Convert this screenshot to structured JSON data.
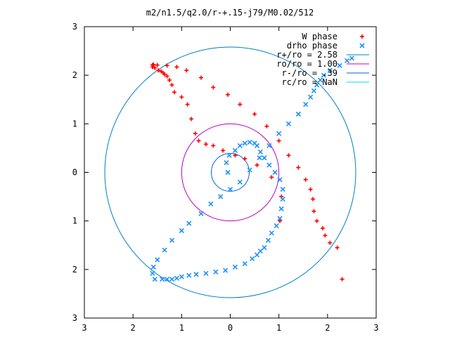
{
  "chart_data": {
    "type": "scatter",
    "title": "m2/n1.5/q2.0/r-+.15-j79/M0.02/512",
    "xlabel": "",
    "ylabel": "",
    "xlim": [
      -3,
      3
    ],
    "ylim": [
      -3,
      3
    ],
    "x_tick_labels": [
      "3",
      "2",
      "1",
      "0",
      "1",
      "2",
      "3"
    ],
    "y_tick_labels": [
      "3",
      "2",
      "1",
      "0",
      "1",
      "2",
      "3"
    ],
    "grid": false,
    "legend_position": "top-right",
    "series": [
      {
        "name": "W phase",
        "kind": "points",
        "marker": "+",
        "color": "#ff0000",
        "x": [
          1.02,
          1.05,
          0.85,
          0.55,
          0.3,
          0.1,
          -0.15,
          -0.35,
          -0.5,
          -0.65,
          -0.72,
          -0.8,
          -0.88,
          -1.0,
          -1.15,
          -1.2,
          -1.25,
          -1.3,
          -1.35,
          -1.38,
          -1.42,
          -1.48,
          -1.55,
          -1.6,
          -1.6,
          -1.58,
          -1.5,
          -1.3,
          -1.1,
          -0.9,
          -0.6,
          -0.35,
          -0.05,
          0.2,
          0.5,
          0.75,
          1.0,
          1.2,
          1.4,
          1.55,
          1.65,
          1.7,
          1.72,
          1.78,
          1.9,
          1.95,
          2.05,
          2.2,
          2.3
        ],
        "y": [
          -1.0,
          -0.5,
          -0.1,
          0.15,
          0.28,
          0.35,
          0.45,
          0.55,
          0.58,
          0.65,
          0.8,
          1.1,
          1.4,
          1.55,
          1.65,
          1.8,
          1.9,
          1.98,
          2.02,
          2.05,
          2.08,
          2.1,
          2.15,
          2.17,
          2.21,
          2.22,
          2.21,
          2.2,
          2.17,
          2.1,
          1.95,
          1.75,
          1.6,
          1.4,
          1.2,
          0.95,
          0.65,
          0.35,
          0.1,
          -0.15,
          -0.35,
          -0.55,
          -0.8,
          -1.0,
          -1.15,
          -1.3,
          -1.45,
          -1.55,
          -2.2
        ]
      },
      {
        "name": "drho phase",
        "kind": "points",
        "marker": "x",
        "color": "#1e90ff",
        "x": [
          -0.05,
          -0.08,
          -0.02,
          0.1,
          0.2,
          0.3,
          0.4,
          0.5,
          0.55,
          0.62,
          0.7,
          0.8,
          0.92,
          1.02,
          1.08,
          1.08,
          1.05,
          1.02,
          0.95,
          0.85,
          0.78,
          0.7,
          0.62,
          0.55,
          0.45,
          0.3,
          0.1,
          -0.1,
          -0.3,
          -0.5,
          -0.7,
          -0.85,
          -1.0,
          -1.1,
          -1.2,
          -1.3,
          -1.4,
          -1.55,
          -1.6,
          -1.58,
          -1.5,
          -1.35,
          -1.2,
          -1.0,
          -0.85,
          -0.6,
          -0.4,
          -0.2,
          0.0,
          0.2,
          0.4,
          0.6,
          0.8,
          1.0,
          1.2,
          1.4,
          1.55,
          1.65,
          1.72,
          1.78,
          1.85,
          1.92,
          2.05,
          2.25,
          2.4,
          2.5
        ],
        "y": [
          0.0,
          0.2,
          0.35,
          0.45,
          0.55,
          0.6,
          0.62,
          0.6,
          0.55,
          0.42,
          0.3,
          0.15,
          0.0,
          -0.15,
          -0.35,
          -0.55,
          -0.75,
          -0.95,
          -1.1,
          -1.25,
          -1.4,
          -1.55,
          -1.62,
          -1.7,
          -1.78,
          -1.88,
          -1.95,
          -2.02,
          -2.05,
          -2.08,
          -2.1,
          -2.12,
          -2.15,
          -2.18,
          -2.2,
          -2.2,
          -2.2,
          -2.2,
          -2.08,
          -1.95,
          -1.8,
          -1.6,
          -1.4,
          -1.2,
          -1.05,
          -0.85,
          -0.65,
          -0.5,
          -0.35,
          -0.2,
          0.05,
          0.3,
          0.55,
          0.8,
          1.0,
          1.2,
          1.4,
          1.55,
          1.68,
          1.8,
          1.9,
          2.0,
          2.1,
          2.2,
          2.3,
          2.35
        ]
      },
      {
        "name": "r+/ro = 2.58",
        "kind": "circle",
        "r": 2.58,
        "color": "#0080c0"
      },
      {
        "name": "ro/ro = 1.00",
        "kind": "circle",
        "r": 1.0,
        "color": "#c000c0"
      },
      {
        "name": "r-/ro = .39",
        "kind": "circle",
        "r": 0.39,
        "color": "#0060e0"
      },
      {
        "name": "rc/ro = NaN",
        "kind": "circle",
        "r": null,
        "color": "#00e0e0"
      }
    ]
  }
}
